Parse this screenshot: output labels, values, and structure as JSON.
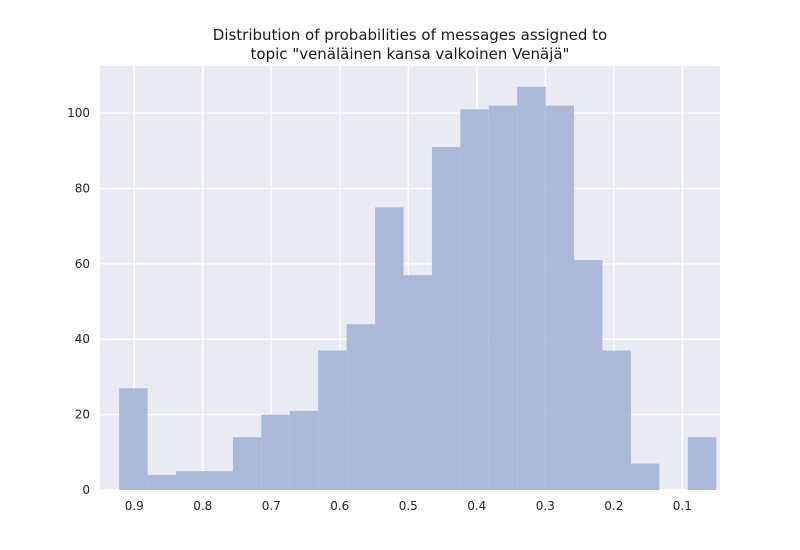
{
  "chart_data": {
    "type": "bar",
    "title_lines": [
      "Distribution of probabilities of messages assigned to",
      "topic \"venäläinen kansa valkoinen Venäjä\""
    ],
    "xlabel": "",
    "ylabel": "",
    "x_reversed": true,
    "xlim": [
      0.95,
      0.045
    ],
    "ylim": [
      0,
      112.5
    ],
    "x_ticks": [
      0.9,
      0.8,
      0.7,
      0.6,
      0.5,
      0.4,
      0.3,
      0.2,
      0.1
    ],
    "x_tick_labels": [
      "0.9",
      "0.8",
      "0.7",
      "0.6",
      "0.5",
      "0.4",
      "0.3",
      "0.2",
      "0.1"
    ],
    "y_ticks": [
      0,
      20,
      40,
      60,
      80,
      100
    ],
    "y_tick_labels": [
      "0",
      "20",
      "40",
      "60",
      "80",
      "100"
    ],
    "grid": true,
    "bin_edges": [
      0.922,
      0.8805,
      0.839,
      0.7975,
      0.756,
      0.7145,
      0.673,
      0.6315,
      0.59,
      0.5485,
      0.507,
      0.4655,
      0.424,
      0.3825,
      0.341,
      0.2995,
      0.258,
      0.2165,
      0.175,
      0.1335,
      0.092,
      0.0505
    ],
    "counts": [
      27,
      4,
      5,
      5,
      14,
      20,
      21,
      37,
      44,
      75,
      57,
      91,
      101,
      102,
      107,
      102,
      61,
      37,
      7,
      0,
      14
    ],
    "bar_color": "#a8b6d6",
    "background_color": "#eaeaf2",
    "grid_color": "#ffffff"
  }
}
